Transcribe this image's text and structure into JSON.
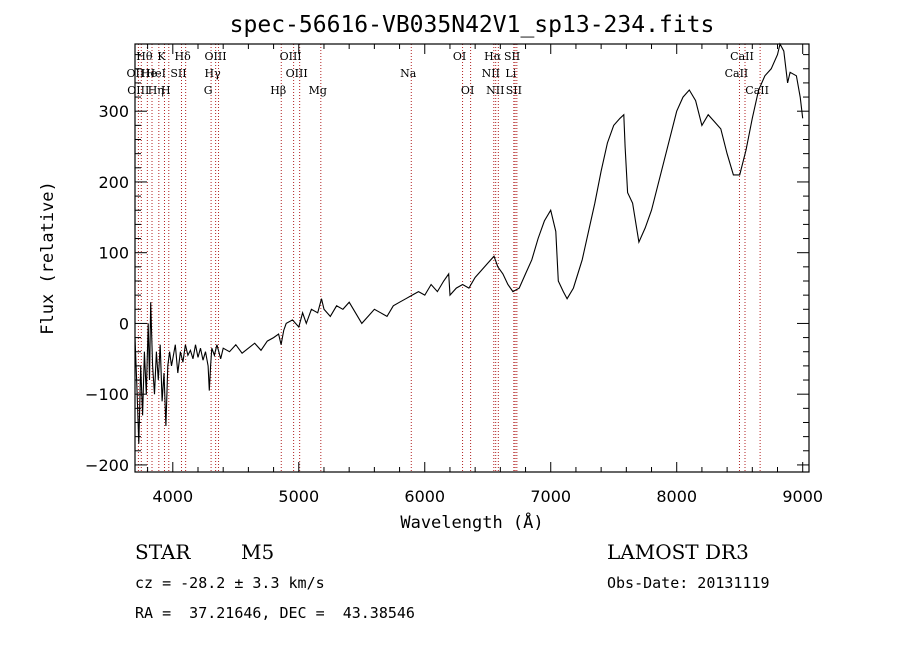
{
  "chart_data": {
    "type": "line",
    "title": "spec-56616-VB035N42V1_sp13-234.fits",
    "xlabel": "Wavelength (Å)",
    "ylabel": "Flux (relative)",
    "xlim": [
      3700,
      9050
    ],
    "ylim": [
      -210,
      395
    ],
    "x_ticks": [
      4000,
      5000,
      6000,
      7000,
      8000,
      9000
    ],
    "y_ticks": [
      -200,
      -100,
      0,
      100,
      200,
      300
    ],
    "colors": {
      "spectrum": "#000000",
      "line_marker": "#b22222",
      "axis": "#000000"
    },
    "spectrum": [
      [
        3700,
        -20
      ],
      [
        3715,
        -90
      ],
      [
        3730,
        -170
      ],
      [
        3745,
        -60
      ],
      [
        3760,
        -130
      ],
      [
        3775,
        -40
      ],
      [
        3790,
        -100
      ],
      [
        3805,
        0
      ],
      [
        3815,
        -80
      ],
      [
        3825,
        30
      ],
      [
        3840,
        -60
      ],
      [
        3855,
        -100
      ],
      [
        3870,
        -40
      ],
      [
        3885,
        -80
      ],
      [
        3900,
        -30
      ],
      [
        3915,
        -110
      ],
      [
        3930,
        -70
      ],
      [
        3945,
        -145
      ],
      [
        3960,
        -60
      ],
      [
        3975,
        -40
      ],
      [
        3990,
        -60
      ],
      [
        4000,
        -50
      ],
      [
        4020,
        -30
      ],
      [
        4040,
        -70
      ],
      [
        4060,
        -40
      ],
      [
        4080,
        -55
      ],
      [
        4100,
        -30
      ],
      [
        4120,
        -45
      ],
      [
        4140,
        -38
      ],
      [
        4160,
        -50
      ],
      [
        4180,
        -30
      ],
      [
        4200,
        -48
      ],
      [
        4220,
        -35
      ],
      [
        4240,
        -52
      ],
      [
        4260,
        -40
      ],
      [
        4280,
        -60
      ],
      [
        4290,
        -95
      ],
      [
        4300,
        -60
      ],
      [
        4310,
        -35
      ],
      [
        4330,
        -45
      ],
      [
        4350,
        -30
      ],
      [
        4380,
        -50
      ],
      [
        4400,
        -35
      ],
      [
        4450,
        -40
      ],
      [
        4500,
        -30
      ],
      [
        4550,
        -42
      ],
      [
        4600,
        -35
      ],
      [
        4650,
        -28
      ],
      [
        4700,
        -38
      ],
      [
        4750,
        -25
      ],
      [
        4800,
        -20
      ],
      [
        4840,
        -15
      ],
      [
        4860,
        -30
      ],
      [
        4880,
        -10
      ],
      [
        4900,
        0
      ],
      [
        4950,
        5
      ],
      [
        5000,
        -5
      ],
      [
        5030,
        15
      ],
      [
        5060,
        0
      ],
      [
        5100,
        20
      ],
      [
        5150,
        15
      ],
      [
        5180,
        35
      ],
      [
        5200,
        20
      ],
      [
        5250,
        10
      ],
      [
        5300,
        25
      ],
      [
        5350,
        20
      ],
      [
        5400,
        30
      ],
      [
        5450,
        15
      ],
      [
        5500,
        0
      ],
      [
        5550,
        10
      ],
      [
        5600,
        20
      ],
      [
        5650,
        15
      ],
      [
        5700,
        10
      ],
      [
        5750,
        25
      ],
      [
        5800,
        30
      ],
      [
        5850,
        35
      ],
      [
        5900,
        40
      ],
      [
        5950,
        45
      ],
      [
        6000,
        40
      ],
      [
        6050,
        55
      ],
      [
        6100,
        45
      ],
      [
        6150,
        60
      ],
      [
        6190,
        70
      ],
      [
        6200,
        40
      ],
      [
        6250,
        50
      ],
      [
        6300,
        55
      ],
      [
        6350,
        50
      ],
      [
        6400,
        65
      ],
      [
        6450,
        75
      ],
      [
        6500,
        85
      ],
      [
        6550,
        95
      ],
      [
        6580,
        80
      ],
      [
        6620,
        70
      ],
      [
        6660,
        55
      ],
      [
        6700,
        45
      ],
      [
        6750,
        50
      ],
      [
        6800,
        70
      ],
      [
        6850,
        90
      ],
      [
        6900,
        120
      ],
      [
        6950,
        145
      ],
      [
        7000,
        160
      ],
      [
        7040,
        130
      ],
      [
        7060,
        60
      ],
      [
        7100,
        45
      ],
      [
        7130,
        35
      ],
      [
        7180,
        50
      ],
      [
        7250,
        90
      ],
      [
        7300,
        130
      ],
      [
        7350,
        170
      ],
      [
        7400,
        215
      ],
      [
        7450,
        255
      ],
      [
        7500,
        280
      ],
      [
        7550,
        290
      ],
      [
        7580,
        295
      ],
      [
        7590,
        250
      ],
      [
        7610,
        185
      ],
      [
        7650,
        170
      ],
      [
        7700,
        115
      ],
      [
        7750,
        135
      ],
      [
        7800,
        160
      ],
      [
        7850,
        195
      ],
      [
        7900,
        230
      ],
      [
        7950,
        265
      ],
      [
        8000,
        300
      ],
      [
        8050,
        320
      ],
      [
        8100,
        330
      ],
      [
        8150,
        315
      ],
      [
        8200,
        280
      ],
      [
        8250,
        295
      ],
      [
        8300,
        285
      ],
      [
        8350,
        275
      ],
      [
        8400,
        240
      ],
      [
        8450,
        210
      ],
      [
        8500,
        210
      ],
      [
        8550,
        245
      ],
      [
        8600,
        290
      ],
      [
        8650,
        330
      ],
      [
        8700,
        350
      ],
      [
        8750,
        360
      ],
      [
        8800,
        380
      ],
      [
        8820,
        395
      ],
      [
        8850,
        385
      ],
      [
        8880,
        340
      ],
      [
        8900,
        355
      ],
      [
        8950,
        350
      ],
      [
        8980,
        320
      ],
      [
        9000,
        290
      ]
    ],
    "lines": [
      {
        "label": "Hθ",
        "wl": 3798,
        "row": 1
      },
      {
        "label": "OII",
        "wl": 3727,
        "row": 2
      },
      {
        "label": "OIII",
        "wl": 3750,
        "row": 3
      },
      {
        "label": "He",
        "wl": 3835,
        "row": 2
      },
      {
        "label": "Hη",
        "wl": 3889,
        "row": 3
      },
      {
        "label": "K",
        "wl": 3934,
        "row": 1
      },
      {
        "label": "HeI",
        "wl": 3889,
        "row": 2
      },
      {
        "label": "SII",
        "wl": 4069,
        "row": 2
      },
      {
        "label": "H",
        "wl": 3968,
        "row": 3
      },
      {
        "label": "Hδ",
        "wl": 4102,
        "row": 1
      },
      {
        "label": "OIII",
        "wl": 4363,
        "row": 1
      },
      {
        "label": "Hγ",
        "wl": 4340,
        "row": 2
      },
      {
        "label": "G",
        "wl": 4304,
        "row": 3
      },
      {
        "label": "Hβ",
        "wl": 4861,
        "row": 3
      },
      {
        "label": "OIII",
        "wl": 4959,
        "row": 1
      },
      {
        "label": "OIII",
        "wl": 5007,
        "row": 2
      },
      {
        "label": "Mg",
        "wl": 5175,
        "row": 3
      },
      {
        "label": "Na",
        "wl": 5893,
        "row": 2
      },
      {
        "label": "OI",
        "wl": 6300,
        "row": 1
      },
      {
        "label": "OI",
        "wl": 6364,
        "row": 3
      },
      {
        "label": "Hα",
        "wl": 6563,
        "row": 1
      },
      {
        "label": "NII",
        "wl": 6548,
        "row": 2
      },
      {
        "label": "NII",
        "wl": 6584,
        "row": 3
      },
      {
        "label": "SII",
        "wl": 6717,
        "row": 1
      },
      {
        "label": "Li",
        "wl": 6707,
        "row": 2
      },
      {
        "label": "SII",
        "wl": 6731,
        "row": 3
      },
      {
        "label": "CaII",
        "wl": 8542,
        "row": 1
      },
      {
        "label": "CaII",
        "wl": 8498,
        "row": 2
      },
      {
        "label": "CaII",
        "wl": 8662,
        "row": 3
      }
    ]
  },
  "info": {
    "object_type": "STAR",
    "subclass": "M5",
    "survey": "LAMOST DR3",
    "cz_line": "cz = -28.2 ± 3.3 km/s",
    "obs_date_line": "Obs-Date: 20131119",
    "coords_line": "RA =  37.21646, DEC =  43.38546"
  }
}
